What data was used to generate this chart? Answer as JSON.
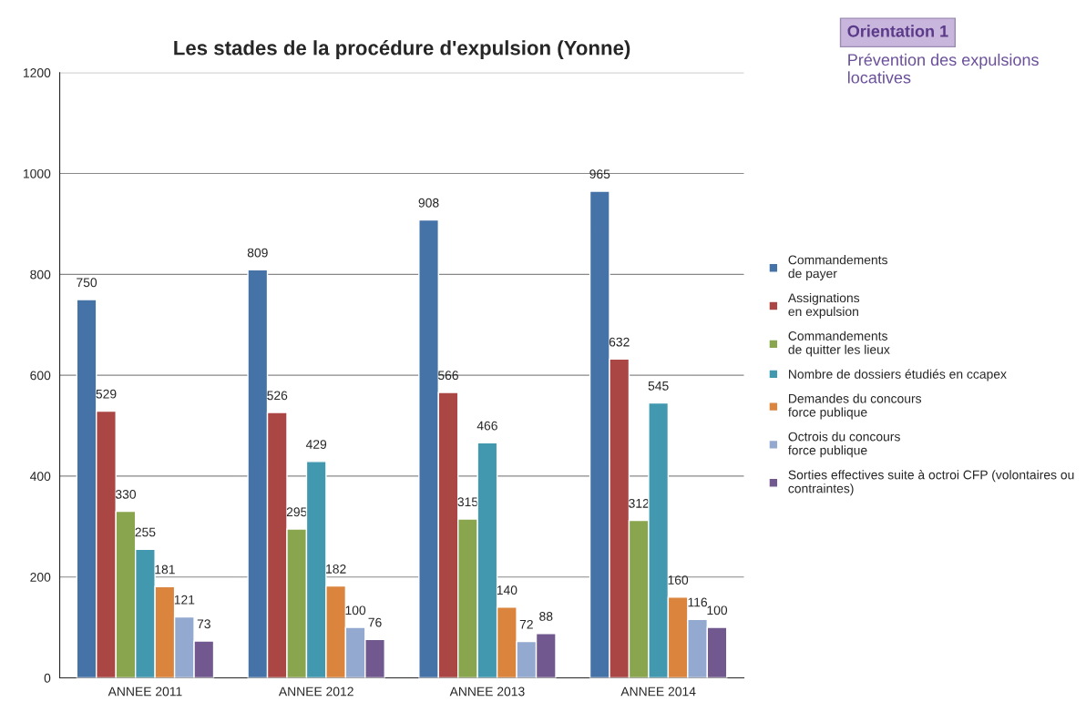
{
  "chart_data": {
    "type": "bar",
    "title": "Les stades de la procédure d'expulsion (Yonne)",
    "categories": [
      "ANNEE 2011",
      "ANNEE 2012",
      "ANNEE 2013",
      "ANNEE 2014"
    ],
    "series": [
      {
        "name": "Commandements\nde payer",
        "color": "#4572a7",
        "values": [
          750,
          809,
          908,
          965
        ]
      },
      {
        "name": "Assignations\nen expulsion",
        "color": "#aa4643",
        "values": [
          529,
          526,
          566,
          632
        ]
      },
      {
        "name": "Commandements\nde quitter les lieux",
        "color": "#89a54e",
        "values": [
          330,
          295,
          315,
          312
        ]
      },
      {
        "name": "Nombre de dossiers étudiés en ccapex",
        "color": "#4198af",
        "values": [
          255,
          429,
          466,
          545
        ]
      },
      {
        "name": "Demandes du concours\nforce publique",
        "color": "#db843d",
        "values": [
          181,
          182,
          140,
          160
        ]
      },
      {
        "name": "Octrois du concours\nforce publique",
        "color": "#93a9cf",
        "values": [
          121,
          100,
          72,
          116
        ]
      },
      {
        "name": "Sorties effectives suite à octroi CFP (volontaires ou\ncontraintes)",
        "color": "#71588f",
        "values": [
          73,
          76,
          88,
          100
        ]
      }
    ],
    "ylim": [
      0,
      1200
    ],
    "yticks": [
      0,
      200,
      400,
      600,
      800,
      1000,
      1200
    ],
    "grid": "y",
    "legend": "right",
    "data_labels": true,
    "annotations": [
      "Orientation 1",
      "Prévention des expulsions\nlocatives"
    ]
  }
}
